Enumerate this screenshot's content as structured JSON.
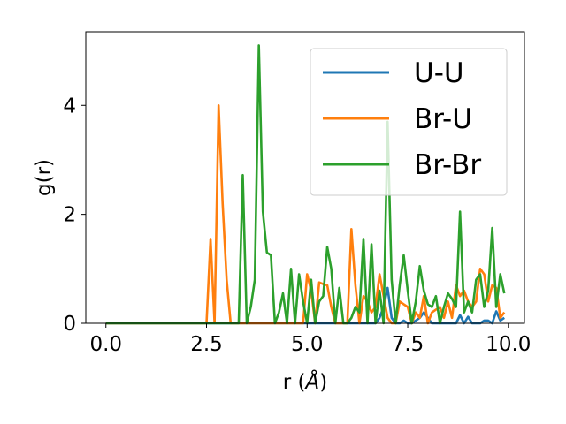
{
  "chart_data": {
    "type": "line",
    "xlabel": "r (",
    "xlabel_unit": "Å",
    "xlabel_close": ")",
    "ylabel": "g(r)",
    "xlim": [
      -0.5,
      10.4
    ],
    "ylim": [
      0,
      5.35
    ],
    "xticks": [
      0.0,
      2.5,
      5.0,
      7.5,
      10.0
    ],
    "xtick_labels": [
      "0.0",
      "2.5",
      "5.0",
      "7.5",
      "10.0"
    ],
    "yticks": [
      0,
      2,
      4
    ],
    "ytick_labels": [
      "0",
      "2",
      "4"
    ],
    "legend_position": "top-right",
    "grid": false,
    "x": [
      0.0,
      0.1,
      0.2,
      0.3,
      0.4,
      0.5,
      0.6,
      0.7,
      0.8,
      0.9,
      1.0,
      1.1,
      1.2,
      1.3,
      1.4,
      1.5,
      1.6,
      1.7,
      1.8,
      1.9,
      2.0,
      2.1,
      2.2,
      2.3,
      2.4,
      2.5,
      2.6,
      2.7,
      2.8,
      2.9,
      3.0,
      3.1,
      3.2,
      3.3,
      3.4,
      3.5,
      3.6,
      3.7,
      3.8,
      3.9,
      4.0,
      4.1,
      4.2,
      4.3,
      4.4,
      4.5,
      4.6,
      4.7,
      4.8,
      4.9,
      5.0,
      5.1,
      5.2,
      5.3,
      5.4,
      5.5,
      5.6,
      5.7,
      5.8,
      5.9,
      6.0,
      6.1,
      6.2,
      6.3,
      6.4,
      6.5,
      6.6,
      6.7,
      6.8,
      6.9,
      7.0,
      7.1,
      7.2,
      7.3,
      7.4,
      7.5,
      7.6,
      7.7,
      7.8,
      7.9,
      8.0,
      8.1,
      8.2,
      8.3,
      8.4,
      8.5,
      8.6,
      8.7,
      8.8,
      8.9,
      9.0,
      9.1,
      9.2,
      9.3,
      9.4,
      9.5,
      9.6,
      9.7,
      9.8,
      9.9
    ],
    "series": [
      {
        "name": "U-U",
        "color": "#1f77b4",
        "values": [
          0,
          0,
          0,
          0,
          0,
          0,
          0,
          0,
          0,
          0,
          0,
          0,
          0,
          0,
          0,
          0,
          0,
          0,
          0,
          0,
          0,
          0,
          0,
          0,
          0,
          0,
          0,
          0,
          0,
          0,
          0,
          0,
          0,
          0,
          0,
          0,
          0,
          0,
          0,
          0,
          0,
          0,
          0,
          0,
          0,
          0,
          0,
          0,
          0,
          0,
          0,
          0,
          0,
          0,
          0,
          0,
          0,
          0,
          0,
          0,
          0,
          0,
          0,
          0,
          0,
          0,
          0,
          0,
          0.1,
          0.3,
          0.65,
          0.1,
          0,
          0,
          0.05,
          0,
          0,
          0.05,
          0.1,
          0.2,
          0.1,
          0,
          0,
          0,
          0,
          0,
          0,
          0,
          0.15,
          0,
          0.12,
          0,
          0,
          0,
          0.05,
          0.05,
          0,
          0.22,
          0.05,
          0.1
        ]
      },
      {
        "name": "Br-U",
        "color": "#ff7f0e",
        "values": [
          0,
          0,
          0,
          0,
          0,
          0,
          0,
          0,
          0,
          0,
          0,
          0,
          0,
          0,
          0,
          0,
          0,
          0,
          0,
          0,
          0,
          0,
          0,
          0,
          0,
          0,
          1.55,
          0,
          4.0,
          2.2,
          0.8,
          0,
          0,
          0,
          0,
          0,
          0,
          0,
          0,
          0,
          0,
          0,
          0,
          0,
          0,
          0,
          0,
          0,
          0,
          0,
          0.9,
          0.6,
          0,
          0.75,
          0.72,
          0.7,
          0.3,
          0,
          0,
          0,
          0,
          1.73,
          0.7,
          0,
          0.5,
          0.4,
          0.2,
          0.3,
          0.9,
          0.5,
          0.1,
          0,
          0,
          0.4,
          0.35,
          0.3,
          0,
          0.2,
          0.1,
          0.5,
          0,
          0.2,
          0.25,
          0.3,
          0.1,
          0.4,
          0.1,
          0.7,
          0.5,
          0.6,
          0.4,
          0.3,
          0.4,
          1.0,
          0.9,
          0.4,
          0.7,
          0.65,
          0.1,
          0.2
        ]
      },
      {
        "name": "Br-Br",
        "color": "#2ca02c",
        "values": [
          0,
          0,
          0,
          0,
          0,
          0,
          0,
          0,
          0,
          0,
          0,
          0,
          0,
          0,
          0,
          0,
          0,
          0,
          0,
          0,
          0,
          0,
          0,
          0,
          0,
          0,
          0,
          0,
          0,
          0,
          0,
          0,
          0,
          0,
          2.72,
          0,
          0.3,
          0.8,
          5.1,
          2.05,
          1.3,
          1.25,
          0,
          0.2,
          0.55,
          0,
          1.0,
          0,
          0.9,
          0.4,
          0,
          0.8,
          0,
          0.4,
          0.5,
          1.4,
          1.0,
          0,
          0.65,
          0,
          0,
          0.1,
          0.3,
          0.2,
          1.55,
          0,
          1.45,
          0,
          0.6,
          0,
          3.7,
          0.8,
          0,
          0.7,
          1.25,
          0.6,
          0,
          0.4,
          1.05,
          0.6,
          0.35,
          0.3,
          0.5,
          0,
          0.3,
          0.55,
          0.45,
          0.3,
          2.05,
          0.2,
          0.4,
          0.2,
          0.8,
          0.9,
          0.3,
          0.6,
          1.75,
          0.3,
          0.9,
          0.55
        ]
      }
    ]
  }
}
